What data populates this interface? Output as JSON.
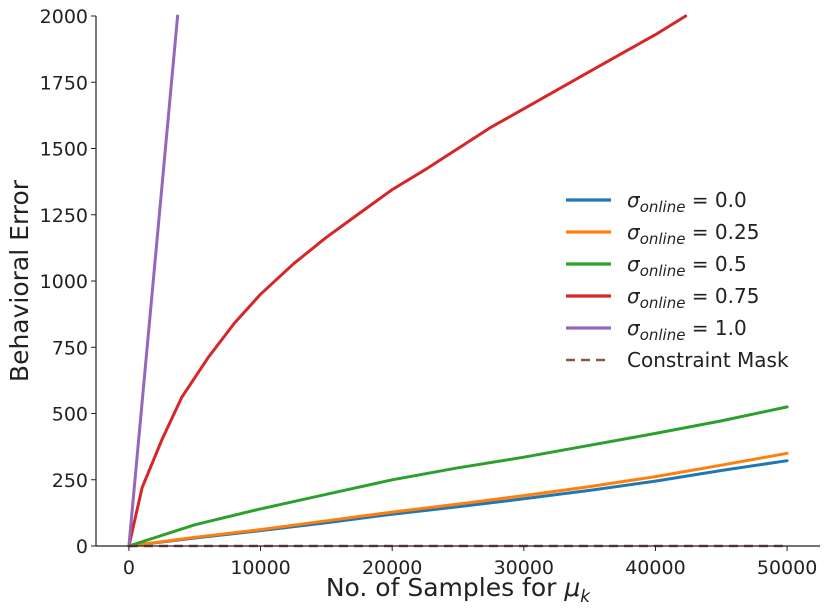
{
  "chart_data": {
    "type": "line",
    "xlabel_prefix": "No. of Samples for ",
    "xlabel_symbol": "μ",
    "xlabel_subscript": "k",
    "ylabel": "Behavioral Error",
    "xlim": [
      -2500,
      52500
    ],
    "ylim": [
      0,
      2000
    ],
    "x_ticks": [
      0,
      10000,
      20000,
      30000,
      40000,
      50000
    ],
    "x_tick_labels": [
      "0",
      "10000",
      "20000",
      "30000",
      "40000",
      "50000"
    ],
    "y_ticks": [
      0,
      250,
      500,
      750,
      1000,
      1250,
      1500,
      1750,
      2000
    ],
    "y_tick_labels": [
      "0",
      "250",
      "500",
      "750",
      "1000",
      "1250",
      "1500",
      "1750",
      "2000"
    ],
    "grid": false,
    "legend_position": "right",
    "series": [
      {
        "name": "σ_online = 0.0",
        "legend_symbol": "σ",
        "legend_sub": "online",
        "legend_value": " = 0.0",
        "color": "#1f77b4",
        "style": "solid",
        "x": [
          0,
          5000,
          10000,
          15000,
          20000,
          25000,
          30000,
          35000,
          40000,
          45000,
          50000
        ],
        "y": [
          0,
          30,
          58,
          88,
          120,
          148,
          178,
          210,
          245,
          285,
          322
        ]
      },
      {
        "name": "σ_online = 0.25",
        "legend_symbol": "σ",
        "legend_sub": "online",
        "legend_value": " = 0.25",
        "color": "#ff7f0e",
        "style": "solid",
        "x": [
          0,
          5000,
          10000,
          15000,
          20000,
          25000,
          30000,
          35000,
          40000,
          45000,
          50000
        ],
        "y": [
          0,
          33,
          62,
          95,
          128,
          158,
          190,
          224,
          262,
          305,
          350
        ]
      },
      {
        "name": "σ_online = 0.5",
        "legend_symbol": "σ",
        "legend_sub": "online",
        "legend_value": " = 0.5",
        "color": "#2ca02c",
        "style": "solid",
        "x": [
          0,
          5000,
          10000,
          15000,
          20000,
          25000,
          30000,
          35000,
          40000,
          45000,
          50000
        ],
        "y": [
          0,
          80,
          140,
          195,
          250,
          295,
          335,
          380,
          425,
          472,
          525
        ]
      },
      {
        "name": "σ_online = 0.75",
        "legend_symbol": "σ",
        "legend_sub": "online",
        "legend_value": " = 0.75",
        "color": "#d62728",
        "style": "solid",
        "x": [
          0,
          1000,
          2500,
          4000,
          6000,
          8000,
          10000,
          12500,
          15000,
          17500,
          20000,
          22500,
          25000,
          27500,
          30000,
          32500,
          35000,
          37500,
          40000,
          42300
        ],
        "y": [
          0,
          220,
          400,
          560,
          710,
          840,
          950,
          1065,
          1165,
          1255,
          1345,
          1420,
          1500,
          1580,
          1650,
          1720,
          1790,
          1860,
          1930,
          2000
        ]
      },
      {
        "name": "σ_online = 1.0",
        "legend_symbol": "σ",
        "legend_sub": "online",
        "legend_value": " = 1.0",
        "color": "#9467bd",
        "style": "solid",
        "x": [
          0,
          3700
        ],
        "y": [
          0,
          2000
        ]
      },
      {
        "name": "Constraint Mask",
        "legend_label": "Constraint Mask",
        "color": "#8c564b",
        "style": "dashed",
        "x": [
          0,
          50000
        ],
        "y": [
          0,
          0
        ]
      }
    ]
  }
}
